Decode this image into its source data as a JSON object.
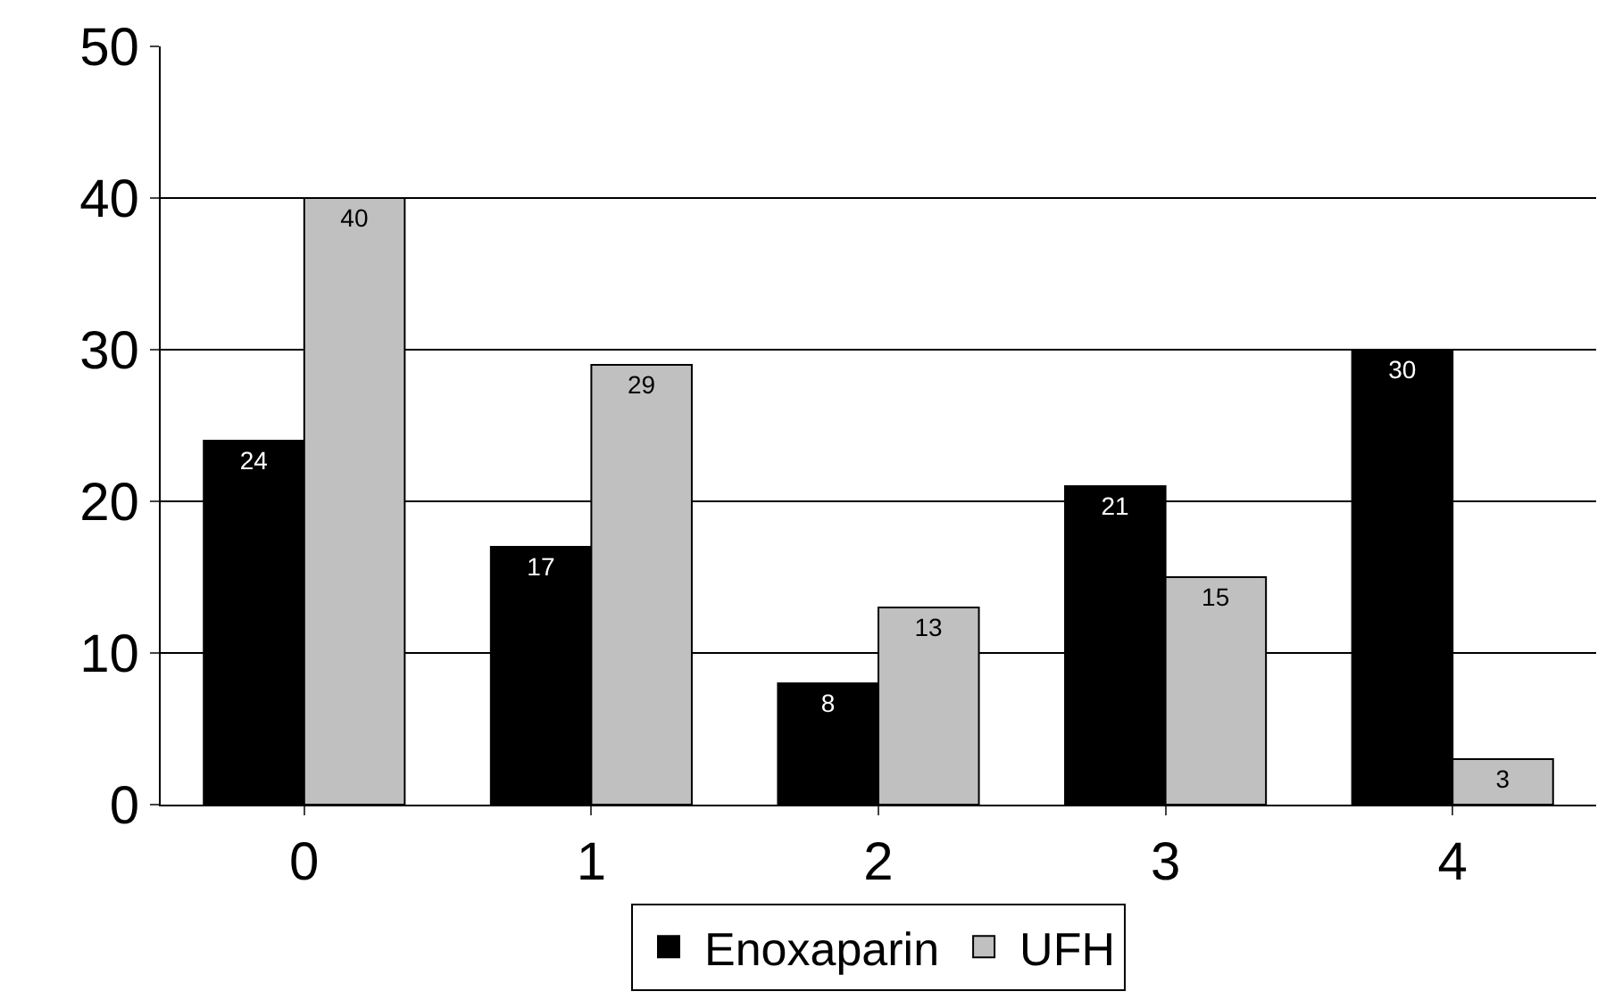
{
  "chart_data": {
    "type": "bar",
    "categories": [
      "0",
      "1",
      "2",
      "3",
      "4"
    ],
    "series": [
      {
        "name": "Enoxaparin",
        "color": "#000000",
        "values": [
          24,
          17,
          8,
          21,
          30
        ]
      },
      {
        "name": "UFH",
        "color": "#c0c0c0",
        "values": [
          40,
          29,
          13,
          15,
          3
        ]
      }
    ],
    "ylim": [
      0,
      50
    ],
    "yticks": [
      0,
      10,
      20,
      30,
      40,
      50
    ],
    "grid": "y",
    "legend": "bottom",
    "data_labels": true
  }
}
